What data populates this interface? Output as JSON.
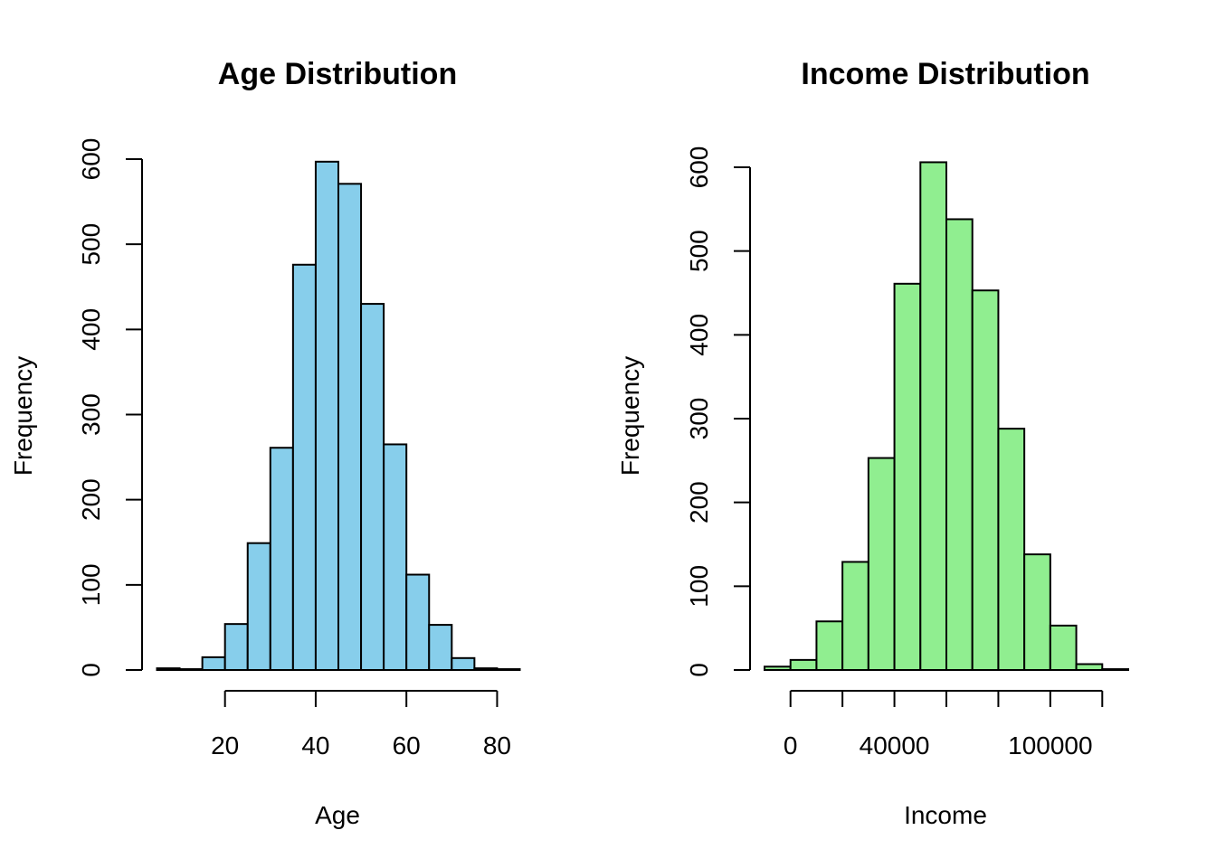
{
  "chart_data": [
    {
      "type": "bar",
      "title": "Age Distribution",
      "xlabel": "Age",
      "ylabel": "Frequency",
      "bin_edges": [
        5,
        10,
        15,
        20,
        25,
        30,
        35,
        40,
        45,
        50,
        55,
        60,
        65,
        70,
        75,
        80,
        85
      ],
      "values": [
        2,
        1,
        15,
        54,
        149,
        261,
        476,
        597,
        571,
        430,
        265,
        112,
        53,
        14,
        2,
        1
      ],
      "xticks": [
        20,
        40,
        60,
        80
      ],
      "xtick_labels": [
        "20",
        "40",
        "60",
        "80"
      ],
      "yticks": [
        0,
        100,
        200,
        300,
        400,
        500,
        600
      ],
      "ytick_labels": [
        "0",
        "100",
        "200",
        "300",
        "400",
        "500",
        "600"
      ],
      "xlim": [
        5,
        85
      ],
      "ylim": [
        0,
        600
      ],
      "color": "#87ceeb"
    },
    {
      "type": "bar",
      "title": "Income Distribution",
      "xlabel": "Income",
      "ylabel": "Frequency",
      "bin_edges": [
        -10000,
        0,
        10000,
        20000,
        30000,
        40000,
        50000,
        60000,
        70000,
        80000,
        90000,
        100000,
        110000,
        120000,
        130000
      ],
      "values": [
        4,
        12,
        58,
        129,
        253,
        461,
        606,
        538,
        453,
        288,
        138,
        53,
        7,
        1
      ],
      "xticks": [
        0,
        20000,
        40000,
        60000,
        80000,
        100000,
        120000
      ],
      "xtick_labels": [
        "0",
        "",
        "40000",
        "",
        "",
        "100000",
        ""
      ],
      "yticks": [
        0,
        100,
        200,
        300,
        400,
        500,
        600
      ],
      "ytick_labels": [
        "0",
        "100",
        "200",
        "300",
        "400",
        "500",
        "600"
      ],
      "xlim": [
        -10000,
        130000
      ],
      "ylim": [
        0,
        600
      ],
      "color": "#90ee90"
    }
  ]
}
